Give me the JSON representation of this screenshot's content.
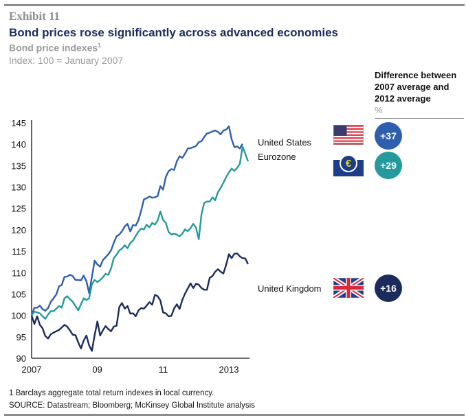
{
  "header": {
    "exhibit": "Exhibit 11",
    "title": "Bond prices rose significantly across advanced economies",
    "subtitle": "Bond price indexes",
    "subtitle_footnote_mark": "1",
    "unit": "Index: 100 = January 2007"
  },
  "difference_panel": {
    "heading": "Difference between 2007 average and 2012 average",
    "unit": "%",
    "rows": [
      {
        "country": "United States",
        "flag_icon": "us-flag-icon",
        "value": "+37",
        "color": "#2e5fae"
      },
      {
        "country": "Eurozone",
        "flag_icon": "ecb-euro-icon",
        "value": "+29",
        "color": "#24999e"
      },
      {
        "country": "United Kingdom",
        "flag_icon": "uk-flag-icon",
        "value": "+16",
        "color": "#1b2c5c"
      }
    ]
  },
  "chart_data": {
    "type": "line",
    "title": "Bond price indexes",
    "xlabel": "",
    "ylabel": "Index: 100 = January 2007",
    "ylim": [
      90,
      145
    ],
    "yticks": [
      90,
      95,
      100,
      105,
      110,
      115,
      120,
      125,
      130,
      135,
      140,
      145
    ],
    "xticks": [
      {
        "label": "2007",
        "month_index": 0
      },
      {
        "label": "09",
        "month_index": 24
      },
      {
        "label": "11",
        "month_index": 48
      },
      {
        "label": "2013",
        "month_index": 72
      }
    ],
    "x_start": "2007-01",
    "x_step": "month",
    "grid": false,
    "legend": "right, inline labels",
    "series": [
      {
        "name": "United States",
        "color": "#2e5fae",
        "values": [
          100,
          101.8,
          101.8,
          102.3,
          101.5,
          101.1,
          101.7,
          103.2,
          104,
          104.9,
          106.8,
          107.1,
          109,
          109.1,
          109.5,
          109.2,
          108.3,
          108.3,
          108.2,
          109.3,
          108,
          105.2,
          109,
          112.8,
          111.9,
          111.4,
          112.9,
          113.6,
          114.3,
          115.2,
          117,
          118.5,
          118.9,
          119.7,
          120.8,
          121.4,
          119.6,
          121.1,
          121,
          122.3,
          124.5,
          127.1,
          127.4,
          127.8,
          127.5,
          127.6,
          127.9,
          130.2,
          129.4,
          132.4,
          133.7,
          134.2,
          134,
          136,
          137.2,
          136.8,
          137.8,
          139,
          139.1,
          139.3,
          139.6,
          140.5,
          140.7,
          141.7,
          142.5,
          142.7,
          143,
          143.2,
          142.9,
          142.3,
          143.2,
          143.4,
          144.2,
          141.2,
          139.3,
          139.5,
          139,
          140.1
        ]
      },
      {
        "name": "Eurozone",
        "color": "#24999e",
        "values": [
          100,
          100.9,
          100.7,
          100.5,
          99.8,
          99.2,
          100.2,
          101,
          101,
          101.6,
          102.2,
          101.8,
          104,
          104.5,
          103.8,
          103.2,
          102.2,
          101.2,
          102.6,
          104,
          103.6,
          104,
          107.3,
          108.3,
          107.8,
          108.3,
          108.9,
          109.7,
          109.5,
          111,
          113.4,
          114.2,
          115.2,
          115.6,
          116.4,
          115.7,
          116.9,
          117.5,
          118.6,
          119.6,
          120.3,
          120.1,
          121.2,
          120.6,
          121.6,
          121.2,
          122.2,
          124.3,
          122.3,
          121.6,
          119.5,
          118.9,
          119.1,
          118.9,
          118.5,
          119.1,
          120.1,
          119.7,
          120.4,
          121.4,
          120.5,
          117.8,
          123.6,
          126.3,
          126.6,
          126.6,
          127.6,
          126.9,
          128.8,
          129.8,
          131,
          132.3,
          133.4,
          134.3,
          133.8,
          134.5,
          135.4,
          139.4,
          137.8,
          136,
          137,
          136.4,
          137.2
        ]
      },
      {
        "name": "United Kingdom",
        "color": "#1b2c5c",
        "values": [
          100,
          98,
          99.8,
          97.8,
          97,
          95.2,
          94.6,
          95.6,
          96,
          96.3,
          96.6,
          97.2,
          97.8,
          97.4,
          96.5,
          95.5,
          95.4,
          93.7,
          92.3,
          94.1,
          95.3,
          93,
          91.7,
          95.4,
          98.6,
          95.3,
          96.5,
          97.5,
          96.8,
          96.3,
          97.4,
          97.6,
          102,
          102.9,
          101.6,
          102.2,
          100.4,
          100.5,
          99.8,
          101.2,
          101.7,
          101.6,
          102.3,
          103.1,
          102.5,
          104.8,
          104.5,
          103.5,
          100.7,
          100.5,
          99.8,
          99.9,
          101.6,
          102.6,
          101.5,
          103.6,
          105.1,
          106.3,
          107.5,
          106.4,
          107.4,
          107.2,
          106.4,
          106,
          106,
          108.8,
          109.2,
          110.2,
          110.8,
          110.2,
          109.8,
          111.8,
          114.3,
          113.4,
          114.4,
          114.5,
          113.8,
          113.4,
          113.3,
          112,
          113,
          113.6,
          114.7,
          108.4,
          108.4,
          106.6
        ]
      }
    ]
  },
  "footer": {
    "footnote": "1  Barclays aggregate total return indexes in local currency.",
    "source": "SOURCE: Datastream; Bloomberg; McKinsey Global Institute analysis"
  }
}
